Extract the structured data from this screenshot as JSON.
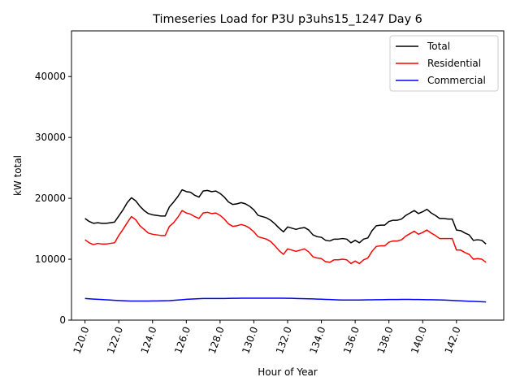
{
  "chart_data": {
    "type": "line",
    "title": "Timeseries Load for P3U p3uhs15_1247  Day 6",
    "xlabel": "Hour of Year",
    "ylabel": "kW total",
    "xlim": [
      119.2,
      144.8
    ],
    "ylim": [
      0,
      47500
    ],
    "xticks": [
      120,
      122,
      124,
      126,
      128,
      130,
      132,
      134,
      136,
      138,
      140,
      142
    ],
    "xtick_labels": [
      "120.0",
      "122.0",
      "124.0",
      "126.0",
      "128.0",
      "130.0",
      "132.0",
      "134.0",
      "136.0",
      "138.0",
      "140.0",
      "142.0"
    ],
    "yticks": [
      0,
      10000,
      20000,
      30000,
      40000
    ],
    "ytick_labels": [
      "0",
      "10000",
      "20000",
      "30000",
      "40000"
    ],
    "legend_position": "top-right",
    "x": [
      120.0,
      120.25,
      120.5,
      120.75,
      121.0,
      121.25,
      121.5,
      121.75,
      122.0,
      122.25,
      122.5,
      122.75,
      123.0,
      123.25,
      123.5,
      123.75,
      124.0,
      124.25,
      124.5,
      124.75,
      125.0,
      125.25,
      125.5,
      125.75,
      126.0,
      126.25,
      126.5,
      126.75,
      127.0,
      127.25,
      127.5,
      127.75,
      128.0,
      128.25,
      128.5,
      128.75,
      129.0,
      129.25,
      129.5,
      129.75,
      130.0,
      130.25,
      130.5,
      130.75,
      131.0,
      131.25,
      131.5,
      131.75,
      132.0,
      132.25,
      132.5,
      132.75,
      133.0,
      133.25,
      133.5,
      133.75,
      134.0,
      134.25,
      134.5,
      134.75,
      135.0,
      135.25,
      135.5,
      135.75,
      136.0,
      136.25,
      136.5,
      136.75,
      137.0,
      137.25,
      137.5,
      137.75,
      138.0,
      138.25,
      138.5,
      138.75,
      139.0,
      139.25,
      139.5,
      139.75,
      140.0,
      140.25,
      140.5,
      140.75,
      141.0,
      141.25,
      141.5,
      141.75,
      142.0,
      142.25,
      142.5,
      142.75,
      143.0,
      143.25,
      143.5,
      143.75
    ],
    "series": [
      {
        "name": "Total",
        "color": "#000000",
        "values": [
          16700,
          16200,
          15900,
          16000,
          15900,
          15900,
          16000,
          16100,
          17100,
          18100,
          19300,
          20100,
          19600,
          18700,
          18000,
          17500,
          17300,
          17200,
          17100,
          17100,
          18600,
          19400,
          20300,
          21400,
          21100,
          21000,
          20500,
          20200,
          21200,
          21300,
          21100,
          21200,
          20800,
          20200,
          19400,
          19000,
          19100,
          19300,
          19100,
          18700,
          18100,
          17200,
          17000,
          16800,
          16400,
          15800,
          15100,
          14500,
          15300,
          15100,
          14900,
          15100,
          15200,
          14800,
          14000,
          13700,
          13600,
          13100,
          13000,
          13300,
          13300,
          13400,
          13300,
          12700,
          13100,
          12700,
          13300,
          13500,
          14700,
          15500,
          15600,
          15600,
          16200,
          16400,
          16400,
          16600,
          17200,
          17600,
          18000,
          17500,
          17800,
          18200,
          17600,
          17200,
          16700,
          16700,
          16600,
          16600,
          14800,
          14700,
          14300,
          14000,
          13100,
          13200,
          13100,
          12500
        ]
      },
      {
        "name": "Residential",
        "color": "#ff0000",
        "values": [
          13200,
          12700,
          12400,
          12600,
          12500,
          12500,
          12600,
          12700,
          13900,
          14900,
          16000,
          17000,
          16500,
          15500,
          14900,
          14300,
          14100,
          14000,
          13900,
          13900,
          15400,
          16000,
          16900,
          18000,
          17600,
          17400,
          17000,
          16700,
          17600,
          17700,
          17500,
          17600,
          17200,
          16600,
          15800,
          15400,
          15500,
          15700,
          15500,
          15100,
          14500,
          13700,
          13500,
          13300,
          12900,
          12200,
          11400,
          10800,
          11700,
          11500,
          11300,
          11500,
          11700,
          11200,
          10400,
          10200,
          10100,
          9600,
          9500,
          9900,
          9900,
          10000,
          9900,
          9300,
          9700,
          9300,
          9900,
          10200,
          11300,
          12100,
          12200,
          12200,
          12800,
          13000,
          13000,
          13200,
          13800,
          14200,
          14600,
          14100,
          14400,
          14800,
          14300,
          13900,
          13400,
          13400,
          13400,
          13400,
          11500,
          11500,
          11100,
          10800,
          10000,
          10100,
          10000,
          9500
        ]
      },
      {
        "name": "Commercial",
        "color": "#0000ff",
        "values": [
          3550,
          3500,
          3460,
          3420,
          3380,
          3340,
          3300,
          3260,
          3220,
          3180,
          3150,
          3130,
          3130,
          3130,
          3130,
          3140,
          3150,
          3160,
          3170,
          3190,
          3210,
          3250,
          3300,
          3360,
          3420,
          3450,
          3480,
          3520,
          3550,
          3560,
          3560,
          3560,
          3560,
          3560,
          3570,
          3580,
          3590,
          3600,
          3600,
          3600,
          3600,
          3600,
          3600,
          3600,
          3600,
          3600,
          3600,
          3600,
          3590,
          3580,
          3560,
          3540,
          3520,
          3500,
          3480,
          3460,
          3430,
          3400,
          3380,
          3350,
          3320,
          3300,
          3300,
          3300,
          3300,
          3310,
          3320,
          3330,
          3340,
          3350,
          3360,
          3370,
          3380,
          3390,
          3390,
          3400,
          3400,
          3400,
          3390,
          3380,
          3370,
          3360,
          3350,
          3340,
          3320,
          3300,
          3270,
          3240,
          3200,
          3170,
          3140,
          3110,
          3080,
          3050,
          3020,
          2990
        ]
      }
    ]
  }
}
